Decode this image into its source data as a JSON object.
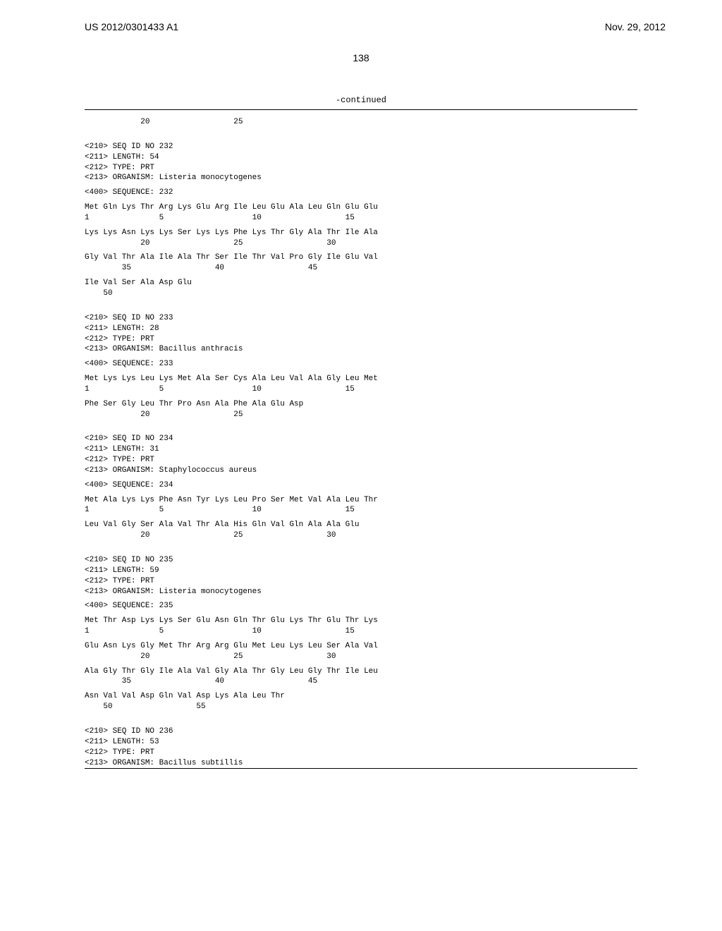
{
  "header": {
    "patent_number": "US 2012/0301433 A1",
    "date": "Nov. 29, 2012"
  },
  "page_number": "138",
  "continued_label": "-continued",
  "blocks": [
    {
      "type": "position_line",
      "lines": [
        "            20                  25"
      ]
    },
    {
      "type": "seq_header",
      "lines": [
        "<210> SEQ ID NO 232",
        "<211> LENGTH: 54",
        "<212> TYPE: PRT",
        "<213> ORGANISM: Listeria monocytogenes"
      ]
    },
    {
      "type": "seq_label",
      "lines": [
        "<400> SEQUENCE: 232"
      ]
    },
    {
      "type": "sequence",
      "lines": [
        "Met Gln Lys Thr Arg Lys Glu Arg Ile Leu Glu Ala Leu Gln Glu Glu",
        "1               5                   10                  15"
      ]
    },
    {
      "type": "sequence",
      "lines": [
        "Lys Lys Asn Lys Lys Ser Lys Lys Phe Lys Thr Gly Ala Thr Ile Ala",
        "            20                  25                  30"
      ]
    },
    {
      "type": "sequence",
      "lines": [
        "Gly Val Thr Ala Ile Ala Thr Ser Ile Thr Val Pro Gly Ile Glu Val",
        "        35                  40                  45"
      ]
    },
    {
      "type": "sequence",
      "lines": [
        "Ile Val Ser Ala Asp Glu",
        "    50"
      ]
    },
    {
      "type": "seq_header",
      "lines": [
        "<210> SEQ ID NO 233",
        "<211> LENGTH: 28",
        "<212> TYPE: PRT",
        "<213> ORGANISM: Bacillus anthracis"
      ]
    },
    {
      "type": "seq_label",
      "lines": [
        "<400> SEQUENCE: 233"
      ]
    },
    {
      "type": "sequence",
      "lines": [
        "Met Lys Lys Leu Lys Met Ala Ser Cys Ala Leu Val Ala Gly Leu Met",
        "1               5                   10                  15"
      ]
    },
    {
      "type": "sequence",
      "lines": [
        "Phe Ser Gly Leu Thr Pro Asn Ala Phe Ala Glu Asp",
        "            20                  25"
      ]
    },
    {
      "type": "seq_header",
      "lines": [
        "<210> SEQ ID NO 234",
        "<211> LENGTH: 31",
        "<212> TYPE: PRT",
        "<213> ORGANISM: Staphylococcus aureus"
      ]
    },
    {
      "type": "seq_label",
      "lines": [
        "<400> SEQUENCE: 234"
      ]
    },
    {
      "type": "sequence",
      "lines": [
        "Met Ala Lys Lys Phe Asn Tyr Lys Leu Pro Ser Met Val Ala Leu Thr",
        "1               5                   10                  15"
      ]
    },
    {
      "type": "sequence",
      "lines": [
        "Leu Val Gly Ser Ala Val Thr Ala His Gln Val Gln Ala Ala Glu",
        "            20                  25                  30"
      ]
    },
    {
      "type": "seq_header",
      "lines": [
        "<210> SEQ ID NO 235",
        "<211> LENGTH: 59",
        "<212> TYPE: PRT",
        "<213> ORGANISM: Listeria monocytogenes"
      ]
    },
    {
      "type": "seq_label",
      "lines": [
        "<400> SEQUENCE: 235"
      ]
    },
    {
      "type": "sequence",
      "lines": [
        "Met Thr Asp Lys Lys Ser Glu Asn Gln Thr Glu Lys Thr Glu Thr Lys",
        "1               5                   10                  15"
      ]
    },
    {
      "type": "sequence",
      "lines": [
        "Glu Asn Lys Gly Met Thr Arg Arg Glu Met Leu Lys Leu Ser Ala Val",
        "            20                  25                  30"
      ]
    },
    {
      "type": "sequence",
      "lines": [
        "Ala Gly Thr Gly Ile Ala Val Gly Ala Thr Gly Leu Gly Thr Ile Leu",
        "        35                  40                  45"
      ]
    },
    {
      "type": "sequence",
      "lines": [
        "Asn Val Val Asp Gln Val Asp Lys Ala Leu Thr",
        "    50                  55"
      ]
    },
    {
      "type": "seq_header",
      "lines": [
        "<210> SEQ ID NO 236",
        "<211> LENGTH: 53",
        "<212> TYPE: PRT",
        "<213> ORGANISM: Bacillus subtillis"
      ]
    }
  ]
}
